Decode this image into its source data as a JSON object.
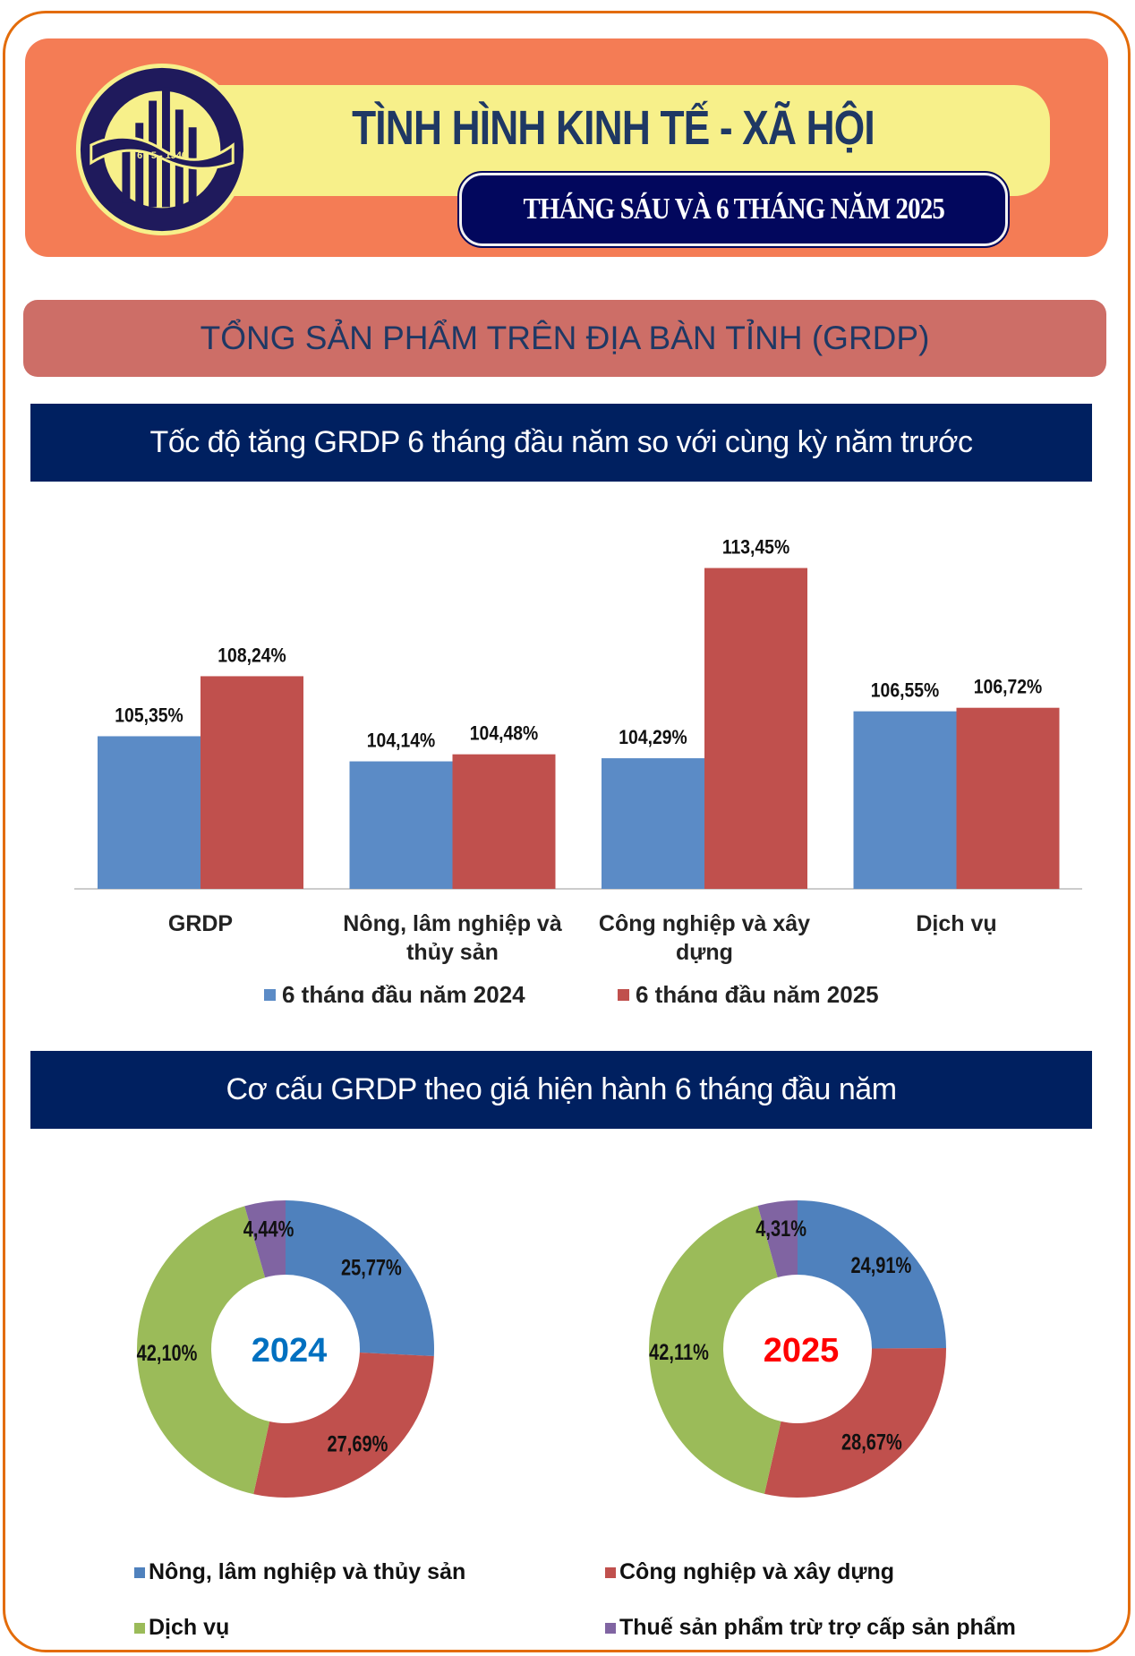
{
  "header": {
    "title": "TÌNH HÌNH KINH TẾ - XÃ HỘI",
    "subtitle": "THÁNG SÁU VÀ 6 THÁNG NĂM 2025",
    "logo_text": [
      "CHXHCN VIỆT NAM",
      "6 - 5 - 1946",
      "TỔNG CỤC THỐNG KÊ"
    ]
  },
  "banner": "TỔNG SẢN PHẨM TRÊN ĐỊA BÀN TỈNH (GRDP)",
  "section1_title": "Tốc độ tăng GRDP 6 tháng đầu năm so với cùng kỳ năm trước",
  "section2_title": "Cơ cấu GRDP theo giá hiện hành 6 tháng đầu năm",
  "colors": {
    "blue": "#4f81bd",
    "blue_bar": "#5b8bc6",
    "red": "#c0504d",
    "green": "#9bbb59",
    "purple": "#8064a2"
  },
  "chart_data": [
    {
      "type": "bar",
      "categories": [
        [
          "GRDP"
        ],
        [
          "Nông, lâm nghiệp  và",
          "thủy sản"
        ],
        [
          "Công nghiệp  và xây",
          "dựng"
        ],
        [
          "Dịch vụ"
        ]
      ],
      "series": [
        {
          "name": "6 tháng đầu năm 2024",
          "values": [
            105.35,
            104.14,
            104.29,
            106.55
          ],
          "labels": [
            "105,35%",
            "104,14%",
            "104,29%",
            "106,55%"
          ]
        },
        {
          "name": "6 tháng đầu năm 2025",
          "values": [
            108.24,
            104.48,
            113.45,
            106.72
          ],
          "labels": [
            "108,24%",
            "104,48%",
            "113,45%",
            "106,72%"
          ]
        }
      ],
      "ylim": [
        98,
        115
      ],
      "legend": "bottom"
    },
    {
      "type": "pie",
      "variant": "donut",
      "center_label": "2024",
      "center_color": "#0070c0",
      "categories": [
        "Nông, lâm nghiệp và thủy sản",
        "Công nghiệp và xây dựng",
        "Dịch vụ",
        "Thuế sản phẩm trừ trợ cấp sản phẩm"
      ],
      "values": [
        25.77,
        27.69,
        42.1,
        4.44
      ],
      "labels": [
        "25,77%",
        "27,69%",
        "42,10%",
        "4,44%"
      ]
    },
    {
      "type": "pie",
      "variant": "donut",
      "center_label": "2025",
      "center_color": "#ff0000",
      "categories": [
        "Nông, lâm nghiệp và thủy sản",
        "Công nghiệp và xây dựng",
        "Dịch vụ",
        "Thuế sản phẩm trừ trợ cấp sản phẩm"
      ],
      "values": [
        24.91,
        28.67,
        42.11,
        4.31
      ],
      "labels": [
        "24,91%",
        "28,67%",
        "42,11%",
        "4,31%"
      ]
    }
  ],
  "pie_legend": [
    "Nông, lâm nghiệp và thủy sản",
    "Công nghiệp và xây dựng",
    "Dịch vụ",
    "Thuế sản phẩm trừ trợ cấp sản phẩm"
  ]
}
